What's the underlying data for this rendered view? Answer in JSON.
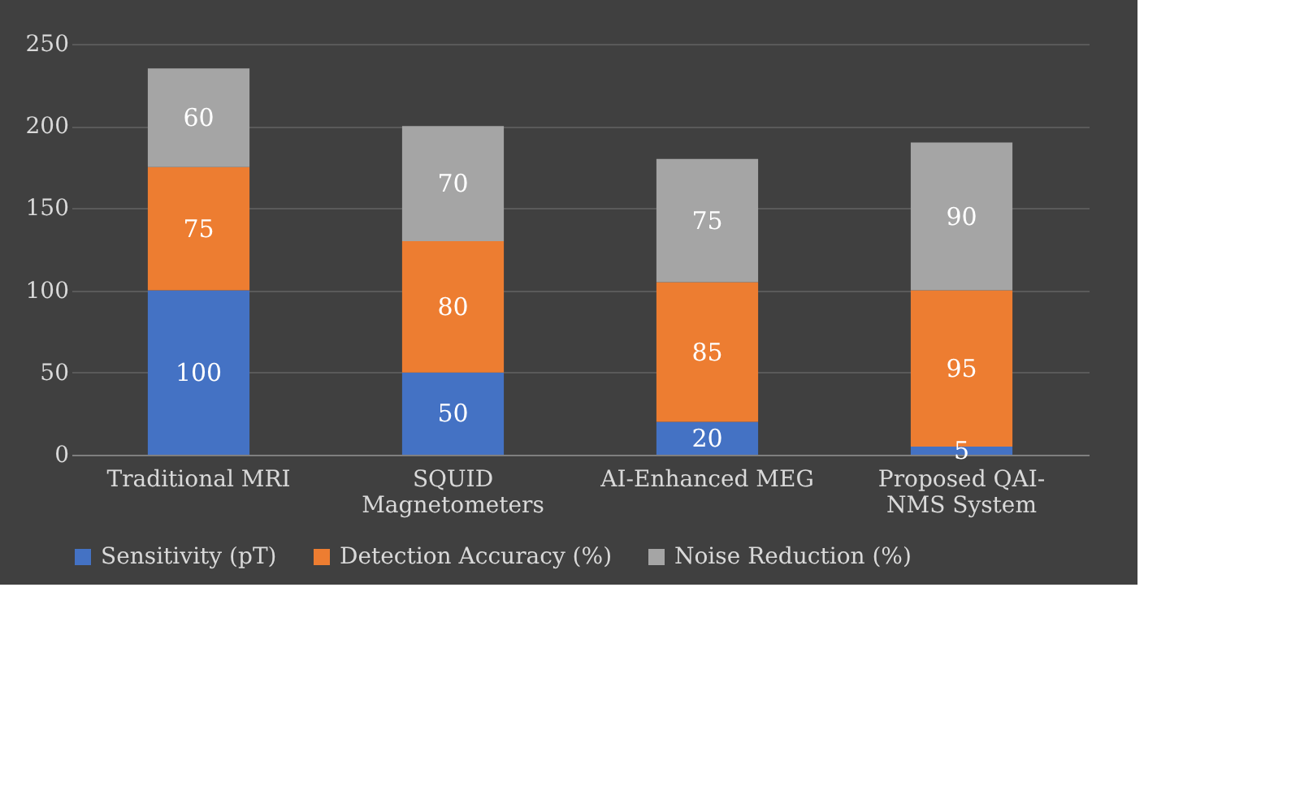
{
  "chart_data": {
    "type": "bar",
    "stacked": true,
    "categories": [
      "Traditional MRI",
      "SQUID Magnetometers",
      "AI-Enhanced MEG",
      "Proposed QAI-NMS System"
    ],
    "series": [
      {
        "name": "Sensitivity (pT)",
        "color": "#4472c4",
        "values": [
          100,
          50,
          20,
          5
        ]
      },
      {
        "name": "Detection Accuracy (%)",
        "color": "#ed7d31",
        "values": [
          75,
          80,
          85,
          95
        ]
      },
      {
        "name": "Noise Reduction (%)",
        "color": "#a5a5a5",
        "values": [
          60,
          70,
          75,
          90
        ]
      }
    ],
    "ylim": [
      0,
      250
    ],
    "yticks": [
      0,
      50,
      100,
      150,
      200,
      250
    ],
    "grid": "y",
    "legend": "bottom",
    "data_labels": true
  }
}
